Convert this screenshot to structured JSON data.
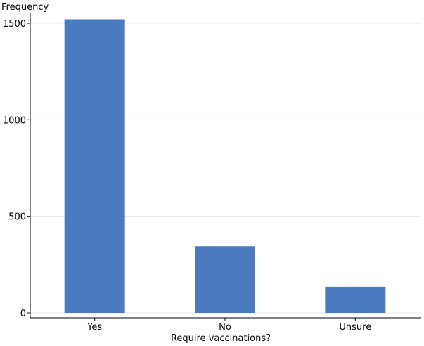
{
  "chart_data": {
    "type": "bar",
    "title": "",
    "xlabel": "Require vaccinations?",
    "ylabel": "Frequency",
    "categories": [
      "Yes",
      "No",
      "Unsure"
    ],
    "values": [
      1520,
      345,
      135
    ],
    "ylim": [
      0,
      1580
    ],
    "yticks": [
      "0",
      "500",
      "1000",
      "1500"
    ],
    "grid": true,
    "bar_color": "#4a7bc1",
    "grid_color": "#e6e6e6"
  }
}
